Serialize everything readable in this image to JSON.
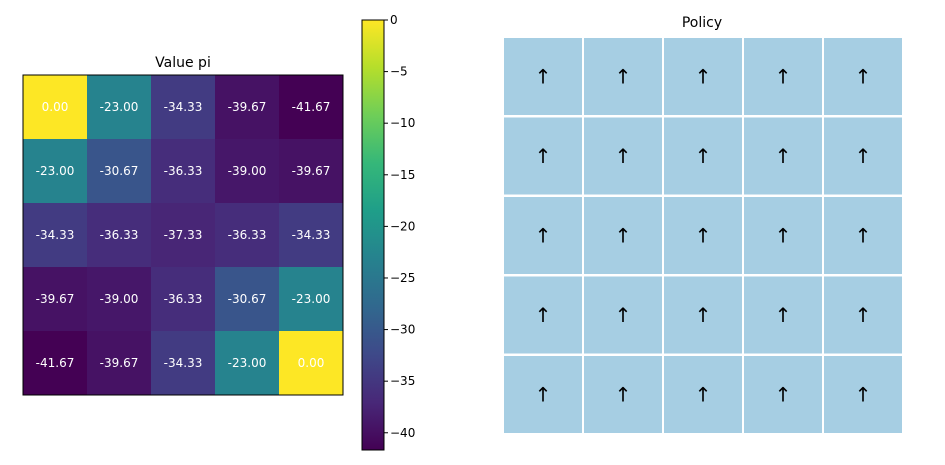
{
  "chart_data": [
    {
      "type": "heatmap",
      "title": "Value pi",
      "colormap": "viridis",
      "vmin": -41.67,
      "vmax": 0,
      "rows": [
        [
          0.0,
          -23.0,
          -34.33,
          -39.67,
          -41.67
        ],
        [
          -23.0,
          -30.67,
          -36.33,
          -39.0,
          -39.67
        ],
        [
          -34.33,
          -36.33,
          -37.33,
          -36.33,
          -34.33
        ],
        [
          -39.67,
          -39.0,
          -36.33,
          -30.67,
          -23.0
        ],
        [
          -41.67,
          -39.67,
          -34.33,
          -23.0,
          0.0
        ]
      ],
      "labels": [
        [
          "0.00",
          "-23.00",
          "-34.33",
          "-39.67",
          "-41.67"
        ],
        [
          "-23.00",
          "-30.67",
          "-36.33",
          "-39.00",
          "-39.67"
        ],
        [
          "-34.33",
          "-36.33",
          "-37.33",
          "-36.33",
          "-34.33"
        ],
        [
          "-39.67",
          "-39.00",
          "-36.33",
          "-30.67",
          "-23.00"
        ],
        [
          "-41.67",
          "-39.67",
          "-34.33",
          "-23.00",
          "0.00"
        ]
      ],
      "colorbar": {
        "ticks": [
          0,
          -5,
          -10,
          -15,
          -20,
          -25,
          -30,
          -35,
          -40
        ],
        "tick_labels": [
          "0",
          "−5",
          "−10",
          "−15",
          "−20",
          "−25",
          "−30",
          "−35",
          "−40"
        ]
      }
    },
    {
      "type": "table",
      "title": "Policy",
      "cell_color": "#a6cee3",
      "arrows": [
        [
          "↑",
          "↑",
          "↑",
          "↑",
          "↑"
        ],
        [
          "↑",
          "↑",
          "↑",
          "↑",
          "↑"
        ],
        [
          "↑",
          "↑",
          "↑",
          "↑",
          "↑"
        ],
        [
          "↑",
          "↑",
          "↑",
          "↑",
          "↑"
        ],
        [
          "↑",
          "↑",
          "↑",
          "↑",
          "↑"
        ]
      ]
    }
  ]
}
